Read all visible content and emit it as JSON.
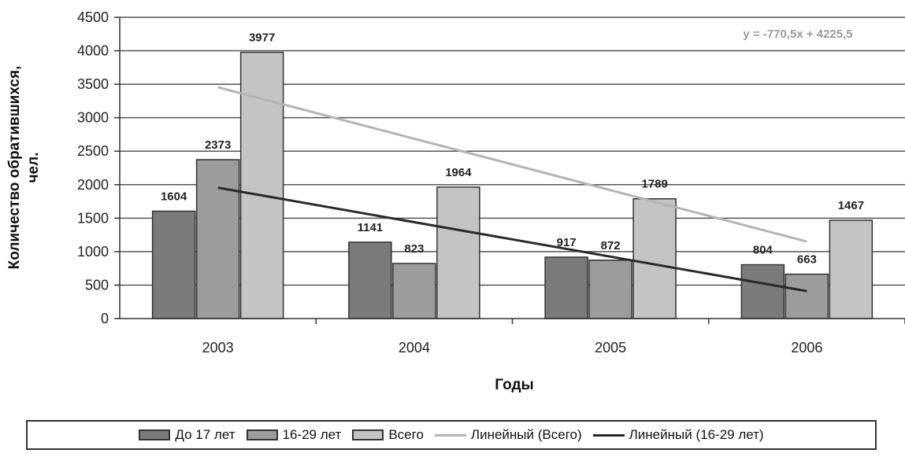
{
  "chart_data": {
    "type": "bar",
    "title": "",
    "xlabel": "Годы",
    "ylabel": "Количество обратившихся, чел.",
    "ylim": [
      0,
      4500
    ],
    "yticks": [
      0,
      500,
      1000,
      1500,
      2000,
      2500,
      3000,
      3500,
      4000,
      4500
    ],
    "categories": [
      "2003",
      "2004",
      "2005",
      "2006"
    ],
    "series": [
      {
        "name": "До 17 лет",
        "values": [
          1604,
          1141,
          917,
          804
        ],
        "labels": [
          "1604",
          "1141",
          "917",
          "804"
        ],
        "color": "#7b7b7b"
      },
      {
        "name": "16-29 лет",
        "values": [
          2373,
          823,
          872,
          663
        ],
        "labels": [
          "2373",
          "823",
          "872",
          "663"
        ],
        "color": "#9c9c9c"
      },
      {
        "name": "Всего",
        "values": [
          3977,
          1964,
          1789,
          1467
        ],
        "labels": [
          "3977",
          "1964",
          "1789",
          "1467"
        ],
        "color": "#c4c4c4"
      }
    ],
    "trendlines": [
      {
        "name": "Линейный (Всего)",
        "y_start": 3455,
        "y_end": 1150,
        "color": "#b4b4b4"
      },
      {
        "name": "Линейный (16-29 лет)",
        "y_start": 1955,
        "y_end": 410,
        "color": "#2a2a2a"
      }
    ],
    "equation": "y = -770,5x + 4225,5",
    "grid": true,
    "legend_position": "bottom"
  }
}
